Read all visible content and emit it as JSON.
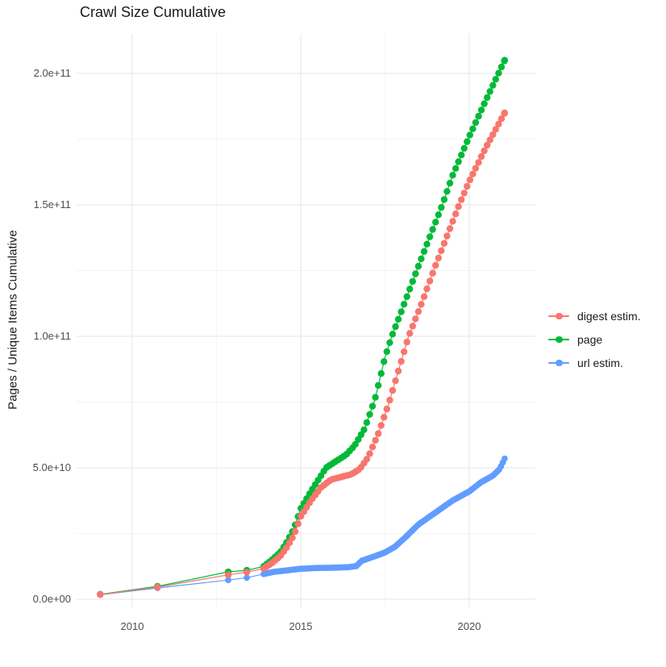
{
  "chart_data": {
    "type": "scatter",
    "title": "Crawl Size Cumulative",
    "xlabel": "",
    "ylabel": "Pages / Unique Items Cumulative",
    "legend_position": "right",
    "grid": "major and minor light-gray gridlines on white background",
    "x_tick_labels": [
      "2010",
      "2015",
      "2020"
    ],
    "x_tick_values": [
      2010,
      2015,
      2020
    ],
    "x_minor_values": [
      2012.5,
      2017.5
    ],
    "y_tick_labels": [
      "0.0e+00",
      "5.0e+10",
      "1.0e+11",
      "1.5e+11",
      "2.0e+11"
    ],
    "y_tick_values_billion": [
      0,
      50,
      100,
      150,
      200
    ],
    "y_minor_values_billion": [
      25,
      75,
      125,
      175
    ],
    "x_range_shown": [
      2008.35,
      2021.95
    ],
    "y_range_shown_billion": [
      -3,
      215
    ],
    "y_unit": "items, values in billions (1e9)",
    "x_unit": "year",
    "series": [
      {
        "name": "digest estim.",
        "color": "#F8766D",
        "dense_from": 2013.9,
        "dot_interval_years": 0.085,
        "points": [
          [
            2009.05,
            1.8
          ],
          [
            2010.75,
            4.6
          ],
          [
            2012.85,
            9.3
          ],
          [
            2013.4,
            10.3
          ],
          [
            2013.9,
            11.7
          ],
          [
            2014.15,
            13.8
          ],
          [
            2014.4,
            16.5
          ],
          [
            2014.6,
            20.0
          ],
          [
            2014.8,
            24.5
          ],
          [
            2015.0,
            31.5
          ],
          [
            2015.3,
            37.5
          ],
          [
            2015.6,
            42.5
          ],
          [
            2015.9,
            45.5
          ],
          [
            2016.2,
            46.5
          ],
          [
            2016.5,
            47.5
          ],
          [
            2016.75,
            49.5
          ],
          [
            2017.0,
            54.0
          ],
          [
            2017.3,
            63.0
          ],
          [
            2017.6,
            74.0
          ],
          [
            2017.9,
            87.0
          ],
          [
            2018.2,
            100.0
          ],
          [
            2018.6,
            113.0
          ],
          [
            2019.0,
            127.0
          ],
          [
            2019.7,
            150.0
          ],
          [
            2020.0,
            159.0
          ],
          [
            2020.5,
            172.0
          ],
          [
            2021.05,
            185.0
          ]
        ]
      },
      {
        "name": "page",
        "color": "#00BA38",
        "dense_from": 2013.9,
        "dot_interval_years": 0.085,
        "points": [
          [
            2009.05,
            1.9
          ],
          [
            2010.75,
            4.9
          ],
          [
            2012.85,
            10.4
          ],
          [
            2013.4,
            11.0
          ],
          [
            2013.9,
            12.5
          ],
          [
            2014.15,
            15.0
          ],
          [
            2014.4,
            18.0
          ],
          [
            2014.6,
            22.0
          ],
          [
            2014.8,
            27.0
          ],
          [
            2015.0,
            34.5
          ],
          [
            2015.3,
            41.0
          ],
          [
            2015.55,
            46.0
          ],
          [
            2015.75,
            50.0
          ],
          [
            2016.05,
            52.5
          ],
          [
            2016.35,
            55.0
          ],
          [
            2016.6,
            58.5
          ],
          [
            2016.9,
            65.0
          ],
          [
            2017.2,
            76.0
          ],
          [
            2017.5,
            92.0
          ],
          [
            2017.7,
            100.0
          ],
          [
            2018.0,
            110.0
          ],
          [
            2018.5,
            127.0
          ],
          [
            2019.2,
            150.0
          ],
          [
            2019.5,
            161.0
          ],
          [
            2020.0,
            176.0
          ],
          [
            2020.5,
            190.0
          ],
          [
            2021.05,
            205.0
          ]
        ]
      },
      {
        "name": "url estim.",
        "color": "#619CFF",
        "dense_from": 2013.9,
        "dot_interval_years": 0.055,
        "points": [
          [
            2009.05,
            1.7
          ],
          [
            2010.75,
            4.3
          ],
          [
            2012.85,
            7.3
          ],
          [
            2013.4,
            8.2
          ],
          [
            2013.9,
            9.6
          ],
          [
            2014.2,
            10.4
          ],
          [
            2014.6,
            11.0
          ],
          [
            2015.0,
            11.6
          ],
          [
            2015.5,
            11.9
          ],
          [
            2016.0,
            12.0
          ],
          [
            2016.4,
            12.2
          ],
          [
            2016.65,
            12.6
          ],
          [
            2016.8,
            14.6
          ],
          [
            2017.0,
            15.5
          ],
          [
            2017.25,
            16.6
          ],
          [
            2017.5,
            17.8
          ],
          [
            2017.8,
            20.0
          ],
          [
            2018.1,
            23.5
          ],
          [
            2018.5,
            28.5
          ],
          [
            2019.0,
            33.0
          ],
          [
            2019.5,
            37.5
          ],
          [
            2020.0,
            41.0
          ],
          [
            2020.35,
            44.5
          ],
          [
            2020.7,
            47.0
          ],
          [
            2020.9,
            49.5
          ],
          [
            2021.05,
            53.5
          ]
        ]
      }
    ]
  }
}
